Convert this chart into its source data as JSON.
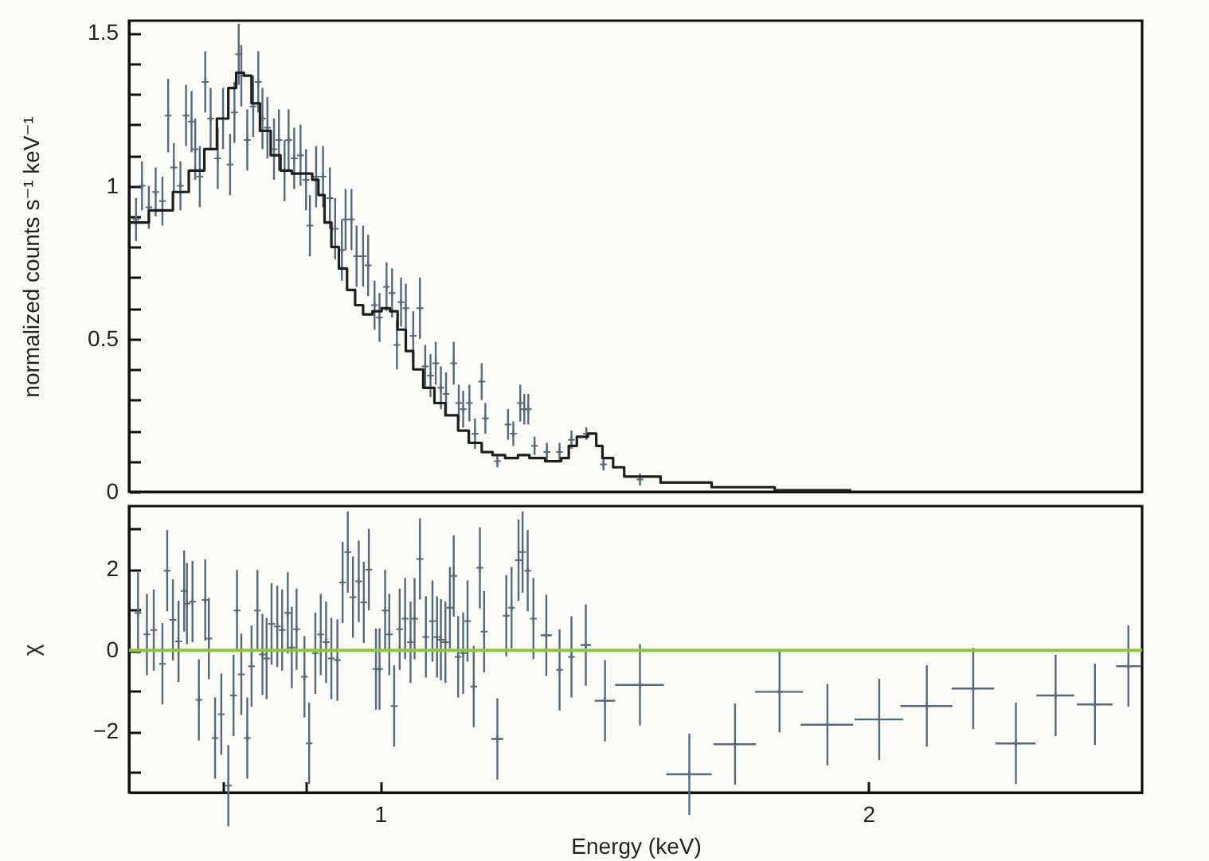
{
  "chart_data": [
    {
      "type": "scatter",
      "ylabel": "normalized counts s⁻¹ keV⁻¹",
      "log": "x",
      "tick_labels": "y",
      "xlim": [
        0.7,
        2.95
      ],
      "ylim": [
        0,
        1.54
      ],
      "yticks": [
        0,
        {
          "value": 0.1,
          "label": null
        },
        {
          "value": 0.2,
          "label": null
        },
        {
          "value": 0.3,
          "label": null
        },
        {
          "value": 0.4,
          "label": null
        },
        0.5,
        {
          "value": 0.6,
          "label": null
        },
        {
          "value": 0.7,
          "label": null
        },
        {
          "value": 0.8,
          "label": null
        },
        {
          "value": 0.9,
          "label": null
        },
        1,
        {
          "value": 1.1,
          "label": null
        },
        {
          "value": 1.2,
          "label": null
        },
        {
          "value": 1.3,
          "label": null
        },
        {
          "value": 1.4,
          "label": null
        },
        1.5
      ],
      "series": [
        {
          "marker": "cross",
          "color": "#56687c",
          "x": [
            0.707,
            0.713,
            0.72,
            0.727,
            0.734,
            0.74,
            0.746,
            0.753,
            0.759,
            0.765,
            0.769,
            0.774,
            0.78,
            0.786,
            0.794,
            0.8,
            0.808,
            0.813,
            0.818,
            0.821,
            0.828,
            0.835,
            0.841,
            0.846,
            0.852,
            0.86,
            0.866,
            0.873,
            0.878,
            0.885,
            0.893,
            0.9,
            0.905,
            0.913,
            0.922,
            0.931,
            0.938,
            0.947,
            0.952,
            0.96,
            0.967,
            0.976,
            0.983,
            0.992,
            0.999,
            1.009,
            1.017,
            1.024,
            1.03,
            1.037,
            1.048,
            1.058,
            1.066,
            1.074,
            1.082,
            1.09,
            1.098,
            1.11,
            1.118,
            1.125,
            1.135,
            1.144,
            1.155,
            1.161,
            1.181,
            1.199,
            1.208,
            1.22,
            1.227,
            1.234,
            1.245,
            1.267,
            1.29,
            1.312,
            1.34,
            1.373,
            1.446
          ],
          "values": [
            0.89,
            1.0,
            0.93,
            0.98,
            0.95,
            1.23,
            1.06,
            1.0,
            1.23,
            1.21,
            1.12,
            1.03,
            1.34,
            1.22,
            1.09,
            1.22,
            1.07,
            1.24,
            1.43,
            1.36,
            1.15,
            1.26,
            1.34,
            1.22,
            1.19,
            1.12,
            1.15,
            1.05,
            1.15,
            1.09,
            1.1,
            1.02,
            0.87,
            1.03,
            1.03,
            0.96,
            0.86,
            0.79,
            0.89,
            0.89,
            0.77,
            0.77,
            0.74,
            0.61,
            0.57,
            0.67,
            0.65,
            0.48,
            0.62,
            0.6,
            0.51,
            0.6,
            0.41,
            0.38,
            0.42,
            0.34,
            0.32,
            0.42,
            0.29,
            0.27,
            0.29,
            0.19,
            0.36,
            0.24,
            0.1,
            0.22,
            0.19,
            0.29,
            0.27,
            0.27,
            0.15,
            0.13,
            0.13,
            0.17,
            0.19,
            0.09,
            0.04
          ],
          "errors": [
            0.07,
            0.08,
            0.07,
            0.08,
            0.08,
            0.12,
            0.08,
            0.08,
            0.1,
            0.1,
            0.1,
            0.1,
            0.1,
            0.1,
            0.1,
            0.1,
            0.1,
            0.1,
            0.1,
            0.1,
            0.1,
            0.1,
            0.1,
            0.1,
            0.1,
            0.1,
            0.1,
            0.1,
            0.1,
            0.1,
            0.1,
            0.1,
            0.1,
            0.1,
            0.1,
            0.1,
            0.1,
            0.1,
            0.1,
            0.1,
            0.1,
            0.1,
            0.1,
            0.08,
            0.08,
            0.08,
            0.08,
            0.08,
            0.08,
            0.08,
            0.08,
            0.1,
            0.07,
            0.07,
            0.07,
            0.07,
            0.07,
            0.07,
            0.06,
            0.06,
            0.06,
            0.05,
            0.06,
            0.05,
            0.02,
            0.05,
            0.04,
            0.06,
            0.05,
            0.05,
            0.03,
            0.03,
            0.03,
            0.03,
            0.02,
            0.02,
            0.02
          ]
        },
        {
          "type": "step",
          "marker": "none",
          "color": "#1e1e1e",
          "x": [
            0.7,
            0.72,
            0.745,
            0.762,
            0.779,
            0.793,
            0.806,
            0.815,
            0.824,
            0.833,
            0.843,
            0.856,
            0.868,
            0.882,
            0.896,
            0.908,
            0.916,
            0.924,
            0.933,
            0.943,
            0.954,
            0.965,
            0.976,
            0.989,
            1.002,
            1.014,
            1.025,
            1.037,
            1.048,
            1.063,
            1.08,
            1.097,
            1.117,
            1.134,
            1.155,
            1.173,
            1.194,
            1.216,
            1.236,
            1.264,
            1.293,
            1.307,
            1.322,
            1.343,
            1.359,
            1.371,
            1.392,
            1.414,
            1.489,
            1.601,
            1.751,
            1.952
          ],
          "values": [
            0.88,
            0.92,
            0.98,
            1.05,
            1.12,
            1.22,
            1.32,
            1.37,
            1.36,
            1.27,
            1.18,
            1.1,
            1.05,
            1.04,
            1.04,
            1.02,
            0.97,
            0.88,
            0.8,
            0.73,
            0.66,
            0.61,
            0.58,
            0.59,
            0.6,
            0.59,
            0.53,
            0.46,
            0.4,
            0.34,
            0.29,
            0.25,
            0.2,
            0.16,
            0.13,
            0.12,
            0.11,
            0.12,
            0.11,
            0.1,
            0.11,
            0.15,
            0.18,
            0.19,
            0.15,
            0.11,
            0.08,
            0.05,
            0.03,
            0.015,
            0.005,
            0.005
          ]
        }
      ]
    },
    {
      "type": "scatter",
      "xlabel": "Energy (keV)",
      "ylabel": "χ",
      "log": "x",
      "marker": "cross",
      "xlim": [
        0.7,
        2.95
      ],
      "xticks": [
        {
          "value": 0.8,
          "label": null
        },
        {
          "value": 0.9,
          "label": null
        },
        1,
        2
      ],
      "ylim": [
        -3.5,
        3.55
      ],
      "yticks": [
        {
          "value": -3,
          "label": null
        },
        {
          "value": -2,
          "label": "−2"
        },
        {
          "value": -1,
          "label": null
        },
        0,
        {
          "value": 1,
          "label": null
        },
        2,
        {
          "value": 3,
          "label": null
        }
      ],
      "ref_lines": [
        {
          "axis": "y",
          "value": 0,
          "color": "#8cc63f"
        }
      ],
      "series": [
        {
          "color": "#56687c",
          "x": [
            0.709,
            0.718,
            0.725,
            0.734,
            0.739,
            0.745,
            0.751,
            0.757,
            0.76,
            0.766,
            0.773,
            0.78,
            0.784,
            0.791,
            0.798,
            0.806,
            0.812,
            0.816,
            0.821,
            0.828,
            0.833,
            0.84,
            0.846,
            0.851,
            0.857,
            0.864,
            0.87,
            0.877,
            0.882,
            0.888,
            0.898,
            0.904,
            0.912,
            0.919,
            0.926,
            0.933,
            0.941,
            0.948,
            0.955,
            0.962,
            0.97,
            0.977,
            0.984,
            0.994,
            0.999,
            1.007,
            1.013,
            1.02,
            1.028,
            1.036,
            1.044,
            1.05,
            1.058,
            1.067,
            1.077,
            1.084,
            1.09,
            1.097,
            1.104,
            1.11,
            1.117,
            1.125,
            1.132,
            1.142,
            1.152,
            1.159,
            1.181,
            1.196,
            1.205,
            1.217,
            1.224,
            1.233,
            1.243,
            1.266,
            1.29,
            1.312,
            1.339,
            1.376,
            1.446,
            1.551,
            1.655,
            1.763,
            1.887,
            2.031,
            2.173,
            2.321,
            2.466,
            2.609,
            2.759,
            2.893
          ],
          "values": [
            0.92,
            0.39,
            0.5,
            -0.33,
            1.96,
            0.75,
            0.22,
            1.46,
            1.15,
            1.2,
            -1.22,
            1.24,
            0.29,
            -2.16,
            -1.57,
            -3.33,
            -1.11,
            0.98,
            -0.59,
            -2.16,
            -0.39,
            0.98,
            -0.1,
            -0.2,
            0.65,
            0.59,
            0.5,
            0.92,
            0.07,
            0.52,
            -0.65,
            -2.29,
            -0.07,
            0.39,
            0.2,
            -0.2,
            -0.24,
            1.67,
            2.42,
            1.31,
            1.7,
            1.18,
            1.99,
            -0.46,
            -0.46,
            0.98,
            0.39,
            -1.37,
            0.52,
            0.78,
            0.2,
            0.78,
            2.25,
            0.33,
            0.72,
            0.33,
            0.26,
            0.2,
            1.05,
            1.83,
            -0.16,
            -0.07,
            0.72,
            -0.89,
            2.03,
            0.46,
            -2.18,
            0.85,
            1.05,
            2.22,
            2.42,
            1.96,
            0.78,
            0.37,
            -0.48,
            -0.16,
            0.13,
            -1.24,
            -0.85,
            -3.05,
            -2.31,
            -1.02,
            -1.83,
            -1.7,
            -1.37,
            -0.94,
            -2.29,
            -1.11,
            -1.33,
            -0.39
          ],
          "errors": [
            1,
            1,
            1,
            1,
            1,
            1,
            1,
            1,
            1,
            1,
            1,
            1,
            1,
            1,
            1,
            1,
            1,
            1,
            1,
            1,
            1,
            1,
            1,
            1,
            1,
            1,
            1,
            1,
            1,
            1,
            1,
            1,
            1,
            1,
            1,
            1,
            1,
            1,
            1,
            1,
            1,
            1,
            1,
            1,
            1,
            1,
            1,
            1,
            1,
            1,
            1,
            1,
            1,
            1,
            1,
            1,
            1,
            1,
            1,
            1,
            1,
            1,
            1,
            1,
            1,
            1,
            1,
            1,
            1,
            1,
            1,
            1,
            1,
            1,
            1,
            1,
            1,
            1,
            1,
            1,
            1,
            1,
            1,
            1,
            1,
            1,
            1,
            1,
            1,
            1
          ],
          "xerrors": [
            null,
            null,
            null,
            null,
            null,
            null,
            null,
            null,
            null,
            null,
            null,
            null,
            null,
            null,
            null,
            null,
            null,
            null,
            null,
            null,
            null,
            null,
            null,
            null,
            null,
            null,
            null,
            null,
            null,
            null,
            null,
            null,
            null,
            null,
            null,
            null,
            null,
            null,
            null,
            null,
            null,
            null,
            null,
            null,
            null,
            null,
            null,
            null,
            null,
            null,
            null,
            null,
            null,
            null,
            null,
            null,
            null,
            null,
            null,
            null,
            null,
            null,
            null,
            null,
            null,
            null,
            0.01,
            null,
            null,
            null,
            null,
            null,
            null,
            0.01,
            null,
            null,
            0.01,
            0.02,
            0.05,
            0.05,
            0.05,
            0.06,
            0.07,
            0.07,
            0.08,
            0.07,
            0.07,
            0.07,
            0.07,
            0.05
          ]
        }
      ]
    }
  ]
}
